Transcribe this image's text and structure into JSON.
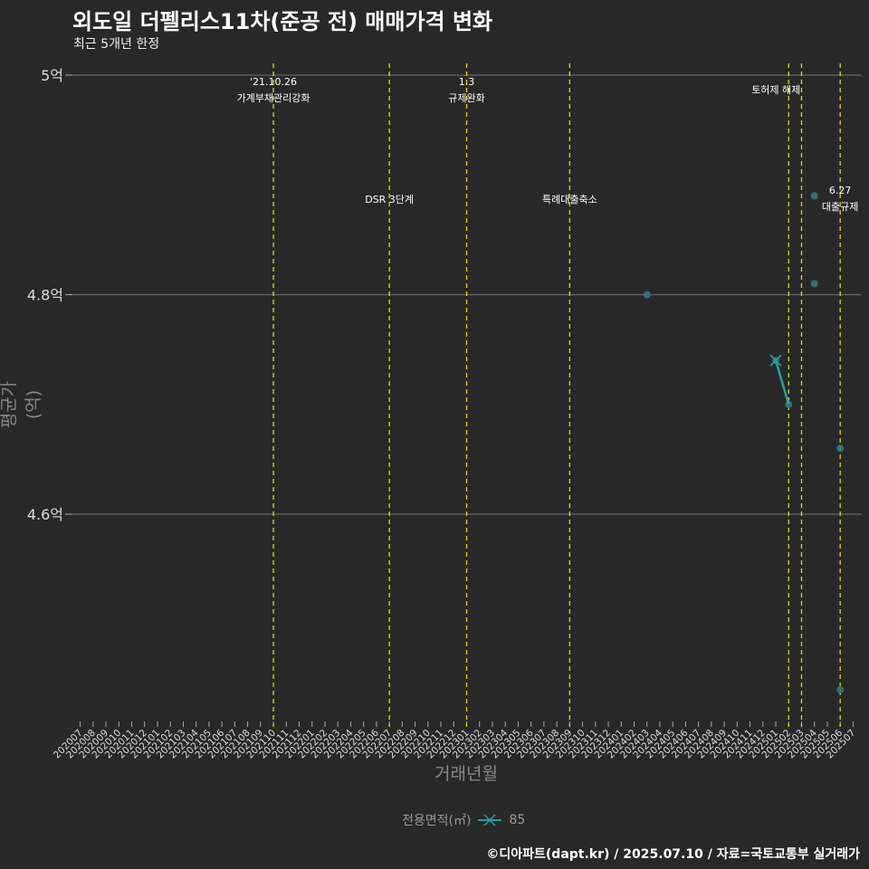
{
  "title": "외도일 더펠리스11차(준공 전) 매매가격 변화",
  "subtitle": "최근 5개년 한정",
  "footer": "©디아파트(dapt.kr) / 2025.07.10 / 자료=국토교통부 실거래가",
  "legend": {
    "title": "전용면적(㎡)",
    "item": "85"
  },
  "colors": {
    "background": "#282828",
    "series": "#2a9d9d",
    "point": "#2e7a7a",
    "event_line": "#e6e619",
    "grid": "#666666"
  },
  "chart_data": {
    "type": "line",
    "title": "외도일 더펠리스11차(준공 전) 매매가격 변화",
    "xlabel": "거래년월",
    "ylabel": "평균가(억)",
    "ylim": [
      4.41,
      5.0
    ],
    "yticks": [
      {
        "v": 4.6,
        "label": "4.6억"
      },
      {
        "v": 4.8,
        "label": "4.8억"
      },
      {
        "v": 5.0,
        "label": "5억"
      }
    ],
    "x": [
      "202007",
      "202008",
      "202009",
      "202010",
      "202011",
      "202012",
      "202101",
      "202102",
      "202103",
      "202104",
      "202105",
      "202106",
      "202107",
      "202108",
      "202109",
      "202110",
      "202111",
      "202112",
      "202201",
      "202202",
      "202203",
      "202204",
      "202205",
      "202206",
      "202207",
      "202208",
      "202209",
      "202210",
      "202211",
      "202212",
      "202301",
      "202302",
      "202303",
      "202304",
      "202305",
      "202306",
      "202307",
      "202308",
      "202309",
      "202310",
      "202311",
      "202312",
      "202401",
      "202402",
      "202403",
      "202404",
      "202405",
      "202406",
      "202407",
      "202408",
      "202409",
      "202410",
      "202411",
      "202412",
      "202501",
      "202502",
      "202503",
      "202504",
      "202505",
      "202506",
      "202507"
    ],
    "series": [
      {
        "name": "85",
        "line": [
          {
            "x": "202501",
            "y": 4.74
          },
          {
            "x": "202502",
            "y": 4.7
          }
        ]
      }
    ],
    "points": [
      {
        "x": "202403",
        "y": 4.8
      },
      {
        "x": "202501",
        "y": 4.74
      },
      {
        "x": "202502",
        "y": 4.7
      },
      {
        "x": "202504",
        "y": 4.89
      },
      {
        "x": "202504",
        "y": 4.81
      },
      {
        "x": "202506",
        "y": 4.66
      },
      {
        "x": "202506",
        "y": 4.44
      }
    ],
    "events": [
      {
        "x": "202110",
        "lines": [
          "'21.10.26",
          "가계부채관리강화"
        ]
      },
      {
        "x": "202207",
        "lines": [
          "DSR 3단계"
        ]
      },
      {
        "x": "202301",
        "lines": [
          "1.3",
          "규제완화"
        ]
      },
      {
        "x": "202309",
        "lines": [
          "특례대출축소"
        ]
      },
      {
        "x": "202502",
        "lines": [
          "토허제 해제"
        ]
      },
      {
        "x": "202503",
        "lines": []
      },
      {
        "x": "202506",
        "lines": [
          "6.27",
          "대출규제"
        ]
      }
    ]
  }
}
